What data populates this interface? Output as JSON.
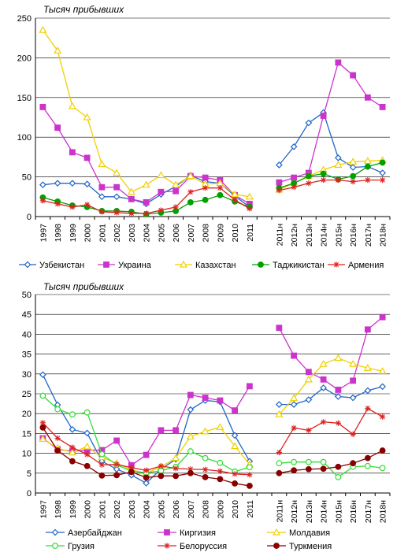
{
  "chart_data": [
    {
      "type": "line",
      "ylabel": "Тысяч прибывших",
      "ylim": [
        0,
        250
      ],
      "yticks": [
        0,
        50,
        100,
        150,
        200,
        250
      ],
      "grid": true,
      "legend_position": "bottom",
      "categories": [
        "1997",
        "1998",
        "1999",
        "2000",
        "2001",
        "2002",
        "2003",
        "2004",
        "2005",
        "2006",
        "2007",
        "2008",
        "2009",
        "2010",
        "2011",
        "",
        "2011н",
        "2012н",
        "2013н",
        "2014н",
        "2015н",
        "2016н",
        "2017н",
        "2018н"
      ],
      "series": [
        {
          "name": "Узбекистан",
          "color": "#2166c6",
          "marker": "diamond",
          "values": [
            40,
            42,
            42,
            41,
            25,
            25,
            22,
            16,
            28,
            38,
            52,
            44,
            42,
            26,
            12,
            null,
            65,
            88,
            118,
            131,
            74,
            62,
            63,
            55
          ]
        },
        {
          "name": "Украина",
          "color": "#cc33cc",
          "marker": "square",
          "values": [
            138,
            112,
            81,
            74,
            37,
            37,
            22,
            18,
            31,
            32,
            51,
            49,
            46,
            27,
            16,
            null,
            43,
            49,
            55,
            127,
            194,
            178,
            150,
            138
          ]
        },
        {
          "name": "Казахстан",
          "color": "#f0d000",
          "marker": "triangle",
          "values": [
            235,
            209,
            139,
            125,
            66,
            55,
            31,
            40,
            52,
            40,
            51,
            41,
            42,
            28,
            25,
            null,
            34,
            42,
            51,
            59,
            65,
            69,
            70,
            71
          ]
        },
        {
          "name": "Таджикистан",
          "color": "#00a000",
          "marker": "circle",
          "values": [
            24,
            19,
            14,
            12,
            7,
            7,
            6,
            3,
            5,
            7,
            18,
            21,
            27,
            19,
            12,
            null,
            36,
            42,
            51,
            54,
            47,
            51,
            63,
            68
          ]
        },
        {
          "name": "Армения",
          "color": "#dd2222",
          "marker": "star",
          "values": [
            20,
            16,
            12,
            15,
            6,
            5,
            4,
            4,
            8,
            12,
            31,
            36,
            36,
            21,
            10,
            null,
            33,
            37,
            42,
            46,
            46,
            44,
            46,
            46
          ]
        }
      ]
    },
    {
      "type": "line",
      "ylabel": "Тысяч прибывших",
      "ylim": [
        0,
        50
      ],
      "yticks": [
        0,
        5,
        10,
        15,
        20,
        25,
        30,
        35,
        40,
        45,
        50
      ],
      "grid": true,
      "legend_position": "bottom",
      "categories": [
        "1997",
        "1998",
        "1999",
        "2000",
        "2001",
        "2002",
        "2003",
        "2004",
        "2005",
        "2006",
        "2007",
        "2008",
        "2009",
        "2010",
        "2011",
        "",
        "2011н",
        "2012н",
        "2013н",
        "2014н",
        "2015н",
        "2016н",
        "2017н",
        "2018н"
      ],
      "series": [
        {
          "name": "Азербайджан",
          "color": "#2166c6",
          "marker": "diamond",
          "values": [
            29.8,
            22.2,
            16.0,
            15.1,
            8.0,
            6.0,
            4.5,
            2.5,
            6.0,
            8.5,
            21.0,
            23.3,
            23.0,
            14.5,
            8.0,
            null,
            22.3,
            22.3,
            23.5,
            26.5,
            24.3,
            24.0,
            25.8,
            26.8
          ]
        },
        {
          "name": "Киргизия",
          "color": "#cc33cc",
          "marker": "square",
          "values": [
            13.8,
            11.0,
            10.5,
            10.8,
            10.8,
            13.2,
            7.0,
            9.6,
            15.8,
            15.8,
            24.7,
            24.0,
            23.3,
            20.8,
            26.9,
            null,
            41.6,
            34.6,
            30.5,
            28.6,
            26.0,
            28.3,
            41.2,
            44.3
          ]
        },
        {
          "name": "Молдавия",
          "color": "#f0d000",
          "marker": "triangle",
          "values": [
            13.6,
            11.3,
            10.2,
            11.7,
            9.0,
            7.5,
            5.8,
            5.0,
            6.6,
            8.8,
            14.2,
            15.5,
            16.6,
            11.8,
            7.2,
            null,
            19.8,
            23.9,
            28.6,
            32.5,
            34.0,
            32.5,
            31.5,
            30.7
          ]
        },
        {
          "name": "Грузия",
          "color": "#33dd33",
          "marker": "circle",
          "values": [
            24.5,
            21.1,
            19.8,
            20.3,
            9.8,
            7.1,
            5.5,
            5.1,
            5.6,
            6.6,
            10.5,
            8.8,
            7.6,
            5.4,
            6.5,
            null,
            7.5,
            7.8,
            7.8,
            7.8,
            4.0,
            6.6,
            6.8,
            6.3
          ]
        },
        {
          "name": "Белоруссия",
          "color": "#dd2222",
          "marker": "star",
          "values": [
            17.7,
            13.8,
            11.5,
            9.7,
            7.1,
            7.2,
            6.4,
            5.7,
            6.8,
            6.2,
            6.0,
            5.9,
            5.5,
            4.8,
            4.6,
            null,
            10.2,
            16.4,
            15.8,
            17.9,
            17.6,
            14.8,
            21.3,
            19.2
          ]
        },
        {
          "name": "Туркмения",
          "color": "#880000",
          "marker": "circle",
          "values": [
            16.5,
            10.7,
            8.0,
            6.8,
            4.4,
            4.5,
            5.3,
            3.9,
            4.3,
            4.3,
            5.0,
            4.0,
            3.5,
            2.4,
            1.8,
            null,
            5.0,
            5.7,
            6.0,
            6.1,
            6.6,
            7.5,
            8.8,
            10.7
          ]
        }
      ]
    }
  ]
}
